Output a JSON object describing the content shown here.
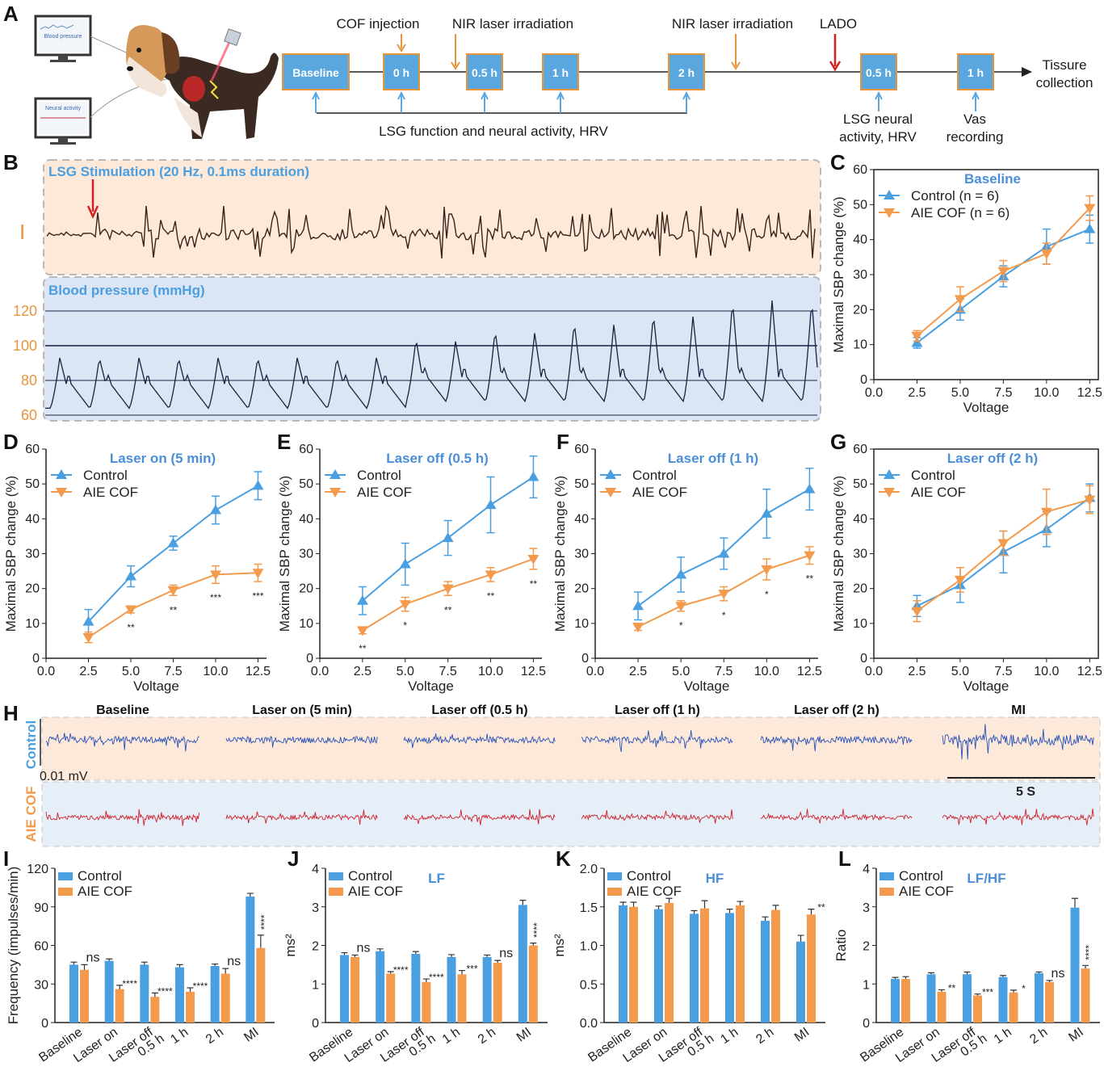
{
  "panels": {
    "A": "A",
    "B": "B",
    "C": "C",
    "D": "D",
    "E": "E",
    "F": "F",
    "G": "G",
    "H": "H",
    "I": "I",
    "J": "J",
    "K": "K",
    "L": "L"
  },
  "timeline": {
    "cof_injection": "COF injection",
    "nir1": "NIR laser irradiation",
    "nir2": "NIR laser irradiation",
    "lado": "LADO",
    "boxes": [
      "Baseline",
      "0 h",
      "0.5 h",
      "1 h",
      "2 h",
      "0.5 h",
      "1 h"
    ],
    "tissue1": "Tissure",
    "tissue2": "collection",
    "lsg_func": "LSG function and neural activity, HRV",
    "lsg_neural1": "LSG neural",
    "lsg_neural2": "activity, HRV",
    "vas1": "Vas",
    "vas2": "recording",
    "monitor1": "Blood pressure",
    "monitor2": "Neural activity"
  },
  "panelB": {
    "stim": "LSG Stimulation (20 Hz, 0.1ms duration)",
    "lead": "I",
    "bp": "Blood pressure (mmHg)",
    "bp_ticks": [
      "120",
      "100",
      "80",
      "60"
    ]
  },
  "sbp_axis": {
    "ylabel": "Maximal SBP change (%)",
    "xlabel": "Voltage",
    "xticks": [
      "0.0",
      "2.5",
      "5.0",
      "7.5",
      "10.0",
      "12.5"
    ],
    "yticks": [
      "0",
      "10",
      "20",
      "30",
      "40",
      "50",
      "60"
    ]
  },
  "chart_data": [
    {
      "panel": "C",
      "type": "line",
      "title": "Baseline",
      "x": [
        2.5,
        5.0,
        7.5,
        10.0,
        12.5
      ],
      "xlabel": "Voltage",
      "ylabel": "Maximal SBP change (%)",
      "ylim": [
        0,
        60
      ],
      "series": [
        {
          "name": "Control (n = 6)",
          "values": [
            10.5,
            20,
            29.5,
            38,
            43
          ],
          "err": [
            1.5,
            3,
            3,
            5,
            4
          ]
        },
        {
          "name": "AIE COF (n = 6)",
          "values": [
            12.5,
            23,
            31,
            36,
            49
          ],
          "err": [
            1.5,
            3.5,
            3,
            3,
            3.5
          ]
        }
      ],
      "annotations": []
    },
    {
      "panel": "D",
      "type": "line",
      "title": "Laser on (5 min)",
      "x": [
        2.5,
        5.0,
        7.5,
        10.0,
        12.5
      ],
      "xlabel": "Voltage",
      "ylabel": "Maximal SBP change (%)",
      "ylim": [
        0,
        60
      ],
      "series": [
        {
          "name": "Control",
          "values": [
            10.5,
            23.5,
            33,
            42.5,
            49.5
          ],
          "err": [
            3.5,
            3,
            2,
            4,
            4
          ]
        },
        {
          "name": "AIE COF",
          "values": [
            6,
            14,
            19.5,
            24,
            24.5
          ],
          "err": [
            1.5,
            1,
            1.5,
            2.5,
            2.5
          ]
        }
      ],
      "annotations": [
        "",
        "**",
        "**",
        "***",
        "***"
      ]
    },
    {
      "panel": "E",
      "type": "line",
      "title": "Laser off (0.5 h)",
      "x": [
        2.5,
        5.0,
        7.5,
        10.0,
        12.5
      ],
      "xlabel": "Voltage",
      "ylabel": "Maximal SBP change (%)",
      "ylim": [
        0,
        60
      ],
      "series": [
        {
          "name": "Control",
          "values": [
            16.5,
            27,
            34.5,
            44,
            52
          ],
          "err": [
            4,
            6,
            5,
            8,
            6
          ]
        },
        {
          "name": "AIE COF",
          "values": [
            8,
            15.5,
            20,
            24,
            28.5
          ],
          "err": [
            1,
            2,
            2,
            2,
            3
          ]
        }
      ],
      "annotations": [
        "**",
        "*",
        "**",
        "**",
        "**"
      ]
    },
    {
      "panel": "F",
      "type": "line",
      "title": "Laser off (1 h)",
      "x": [
        2.5,
        5.0,
        7.5,
        10.0,
        12.5
      ],
      "xlabel": "Voltage",
      "ylabel": "Maximal SBP change (%)",
      "ylim": [
        0,
        60
      ],
      "series": [
        {
          "name": "Control",
          "values": [
            15,
            24,
            30,
            41.5,
            48.5
          ],
          "err": [
            4,
            5,
            4.5,
            7,
            6
          ]
        },
        {
          "name": "AIE COF",
          "values": [
            9,
            15,
            18.5,
            25.5,
            29.5
          ],
          "err": [
            1,
            1.5,
            2,
            3,
            2.5
          ]
        }
      ],
      "annotations": [
        "",
        "*",
        "*",
        "*",
        "**"
      ]
    },
    {
      "panel": "G",
      "type": "line",
      "title": "Laser off (2 h)",
      "x": [
        2.5,
        5.0,
        7.5,
        10.0,
        12.5
      ],
      "xlabel": "Voltage",
      "ylabel": "Maximal SBP change (%)",
      "ylim": [
        0,
        60
      ],
      "series": [
        {
          "name": "Control",
          "values": [
            15,
            21,
            30.5,
            37,
            46
          ],
          "err": [
            3,
            5,
            6,
            5,
            4
          ]
        },
        {
          "name": "AIE COF",
          "values": [
            13.5,
            22.5,
            33,
            42,
            45.5
          ],
          "err": [
            3,
            3.5,
            3.5,
            6.5,
            4
          ]
        }
      ],
      "annotations": []
    },
    {
      "panel": "I",
      "type": "bar",
      "title": "",
      "categories": [
        "Baseline",
        "Laser on",
        "Laser off 0.5 h",
        "1 h",
        "2 h",
        "MI"
      ],
      "ylabel": "Frequency (impulses/min)",
      "ylim": [
        0,
        120
      ],
      "yticks": [
        "0",
        "30",
        "60",
        "90",
        "120"
      ],
      "series": [
        {
          "name": "Control",
          "values": [
            45,
            48,
            45,
            43,
            44,
            98
          ],
          "err": [
            2,
            1.5,
            2,
            2,
            1.5,
            2.5
          ]
        },
        {
          "name": "AIE COF",
          "values": [
            41,
            26,
            20,
            24,
            38,
            58
          ],
          "err": [
            4,
            3,
            3,
            3,
            4,
            10
          ]
        }
      ],
      "annotations": [
        "ns",
        "****",
        "****",
        "****",
        "ns",
        "****"
      ]
    },
    {
      "panel": "J",
      "type": "bar",
      "title": "LF",
      "categories": [
        "Baseline",
        "Laser on",
        "Laser off 0.5 h",
        "1 h",
        "2 h",
        "MI"
      ],
      "ylabel": "ms²",
      "ylim": [
        0,
        4
      ],
      "yticks": [
        "0",
        "1",
        "2",
        "3",
        "4"
      ],
      "series": [
        {
          "name": "Control",
          "values": [
            1.75,
            1.85,
            1.78,
            1.7,
            1.7,
            3.05
          ],
          "err": [
            0.06,
            0.06,
            0.06,
            0.06,
            0.05,
            0.12
          ]
        },
        {
          "name": "AIE COF",
          "values": [
            1.7,
            1.27,
            1.05,
            1.25,
            1.55,
            2.0
          ],
          "err": [
            0.05,
            0.05,
            0.08,
            0.1,
            0.06,
            0.06
          ]
        }
      ],
      "annotations": [
        "ns",
        "****",
        "****",
        "***",
        "ns",
        "****"
      ]
    },
    {
      "panel": "K",
      "type": "bar",
      "title": "HF",
      "categories": [
        "Baseline",
        "Laser on",
        "Laser off 0.5 h",
        "1 h",
        "2 h",
        "MI"
      ],
      "ylabel": "ms²",
      "ylim": [
        0,
        2
      ],
      "yticks": [
        "0.0",
        "0.5",
        "1.0",
        "1.5",
        "2.0"
      ],
      "series": [
        {
          "name": "Control",
          "values": [
            1.52,
            1.47,
            1.41,
            1.42,
            1.32,
            1.05
          ],
          "err": [
            0.04,
            0.04,
            0.04,
            0.05,
            0.05,
            0.08
          ]
        },
        {
          "name": "AIE COF",
          "values": [
            1.5,
            1.55,
            1.48,
            1.52,
            1.46,
            1.4
          ],
          "err": [
            0.06,
            0.06,
            0.1,
            0.05,
            0.06,
            0.07
          ]
        }
      ],
      "annotations": [
        "",
        "",
        "",
        "",
        "",
        "**"
      ]
    },
    {
      "panel": "L",
      "type": "bar",
      "title": "LF/HF",
      "categories": [
        "Baseline",
        "Laser on",
        "Laser off 0.5 h",
        "1 h",
        "2 h",
        "MI"
      ],
      "ylabel": "Ratio",
      "ylim": [
        0,
        4
      ],
      "yticks": [
        "0",
        "1",
        "2",
        "3",
        "4"
      ],
      "series": [
        {
          "name": "Control",
          "values": [
            1.13,
            1.25,
            1.25,
            1.18,
            1.28,
            2.98
          ],
          "err": [
            0.04,
            0.04,
            0.06,
            0.04,
            0.03,
            0.24
          ]
        },
        {
          "name": "AIE COF",
          "values": [
            1.13,
            0.8,
            0.7,
            0.78,
            1.05,
            1.4
          ],
          "err": [
            0.06,
            0.05,
            0.04,
            0.06,
            0.04,
            0.08
          ]
        }
      ],
      "annotations": [
        "",
        "**",
        "***",
        "*",
        "ns",
        "****"
      ]
    }
  ],
  "bar_cat_labels": [
    [
      "Baseline"
    ],
    [
      "Laser on"
    ],
    [
      "Laser off",
      "0.5 h"
    ],
    [
      "1 h"
    ],
    [
      "2 h"
    ],
    [
      "MI"
    ]
  ],
  "panelH": {
    "titles": [
      "Baseline",
      "Laser on (5 min)",
      "Laser off (0.5 h)",
      "Laser off (1 h)",
      "Laser off (2 h)",
      "MI"
    ],
    "row1": "Control",
    "row2": "AIE COF",
    "scale_v": "0.01 mV",
    "scale_t": "5 S"
  },
  "colors": {
    "control": "#4a9fe0",
    "aie": "#f39a4c",
    "control_trace": "#2a52b8",
    "aie_trace": "#d0202a",
    "ecg": "#3a2418",
    "bp": "#1b2240",
    "peach": "#fde9da",
    "lightblue": "#dbe5f4"
  }
}
